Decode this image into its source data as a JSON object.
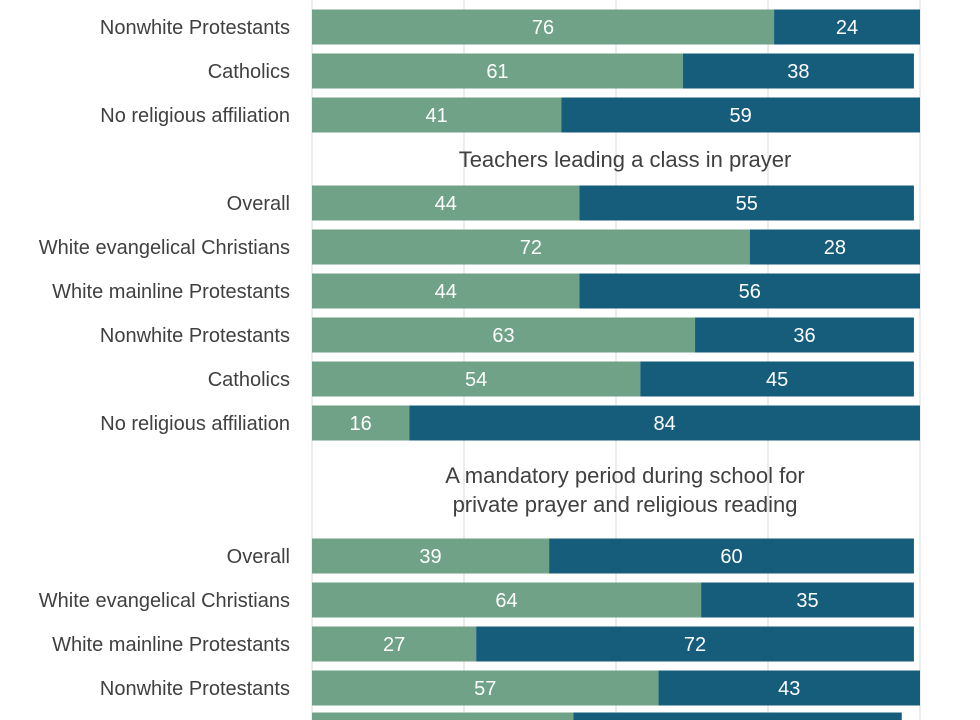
{
  "chart_data": {
    "type": "bar",
    "orientation": "horizontal",
    "stacked": true,
    "grid": true,
    "colors": {
      "series_a": "#6fa287",
      "series_b": "#165d7c"
    },
    "sections": [
      {
        "title_lines": [],
        "rows": [
          {
            "label": "Nonwhite Protestants",
            "a": 76,
            "b": 24
          },
          {
            "label": "Catholics",
            "a": 61,
            "b": 38
          },
          {
            "label": "No religious affiliation",
            "a": 41,
            "b": 59
          }
        ]
      },
      {
        "title_lines": [
          "Teachers leading a class in prayer"
        ],
        "rows": [
          {
            "label": "Overall",
            "a": 44,
            "b": 55
          },
          {
            "label": "White evangelical Christians",
            "a": 72,
            "b": 28
          },
          {
            "label": "White mainline Protestants",
            "a": 44,
            "b": 56
          },
          {
            "label": "Nonwhite Protestants",
            "a": 63,
            "b": 36
          },
          {
            "label": "Catholics",
            "a": 54,
            "b": 45
          },
          {
            "label": "No religious affiliation",
            "a": 16,
            "b": 84
          }
        ]
      },
      {
        "title_lines": [
          "A mandatory period during school for",
          "private prayer and religious reading"
        ],
        "rows": [
          {
            "label": "Overall",
            "a": 39,
            "b": 60
          },
          {
            "label": "White evangelical Christians",
            "a": 64,
            "b": 35
          },
          {
            "label": "White mainline Protestants",
            "a": 27,
            "b": 72
          },
          {
            "label": "Nonwhite Protestants",
            "a": 57,
            "b": 43
          },
          {
            "label": "",
            "a": 43,
            "b": 54
          }
        ]
      }
    ]
  }
}
